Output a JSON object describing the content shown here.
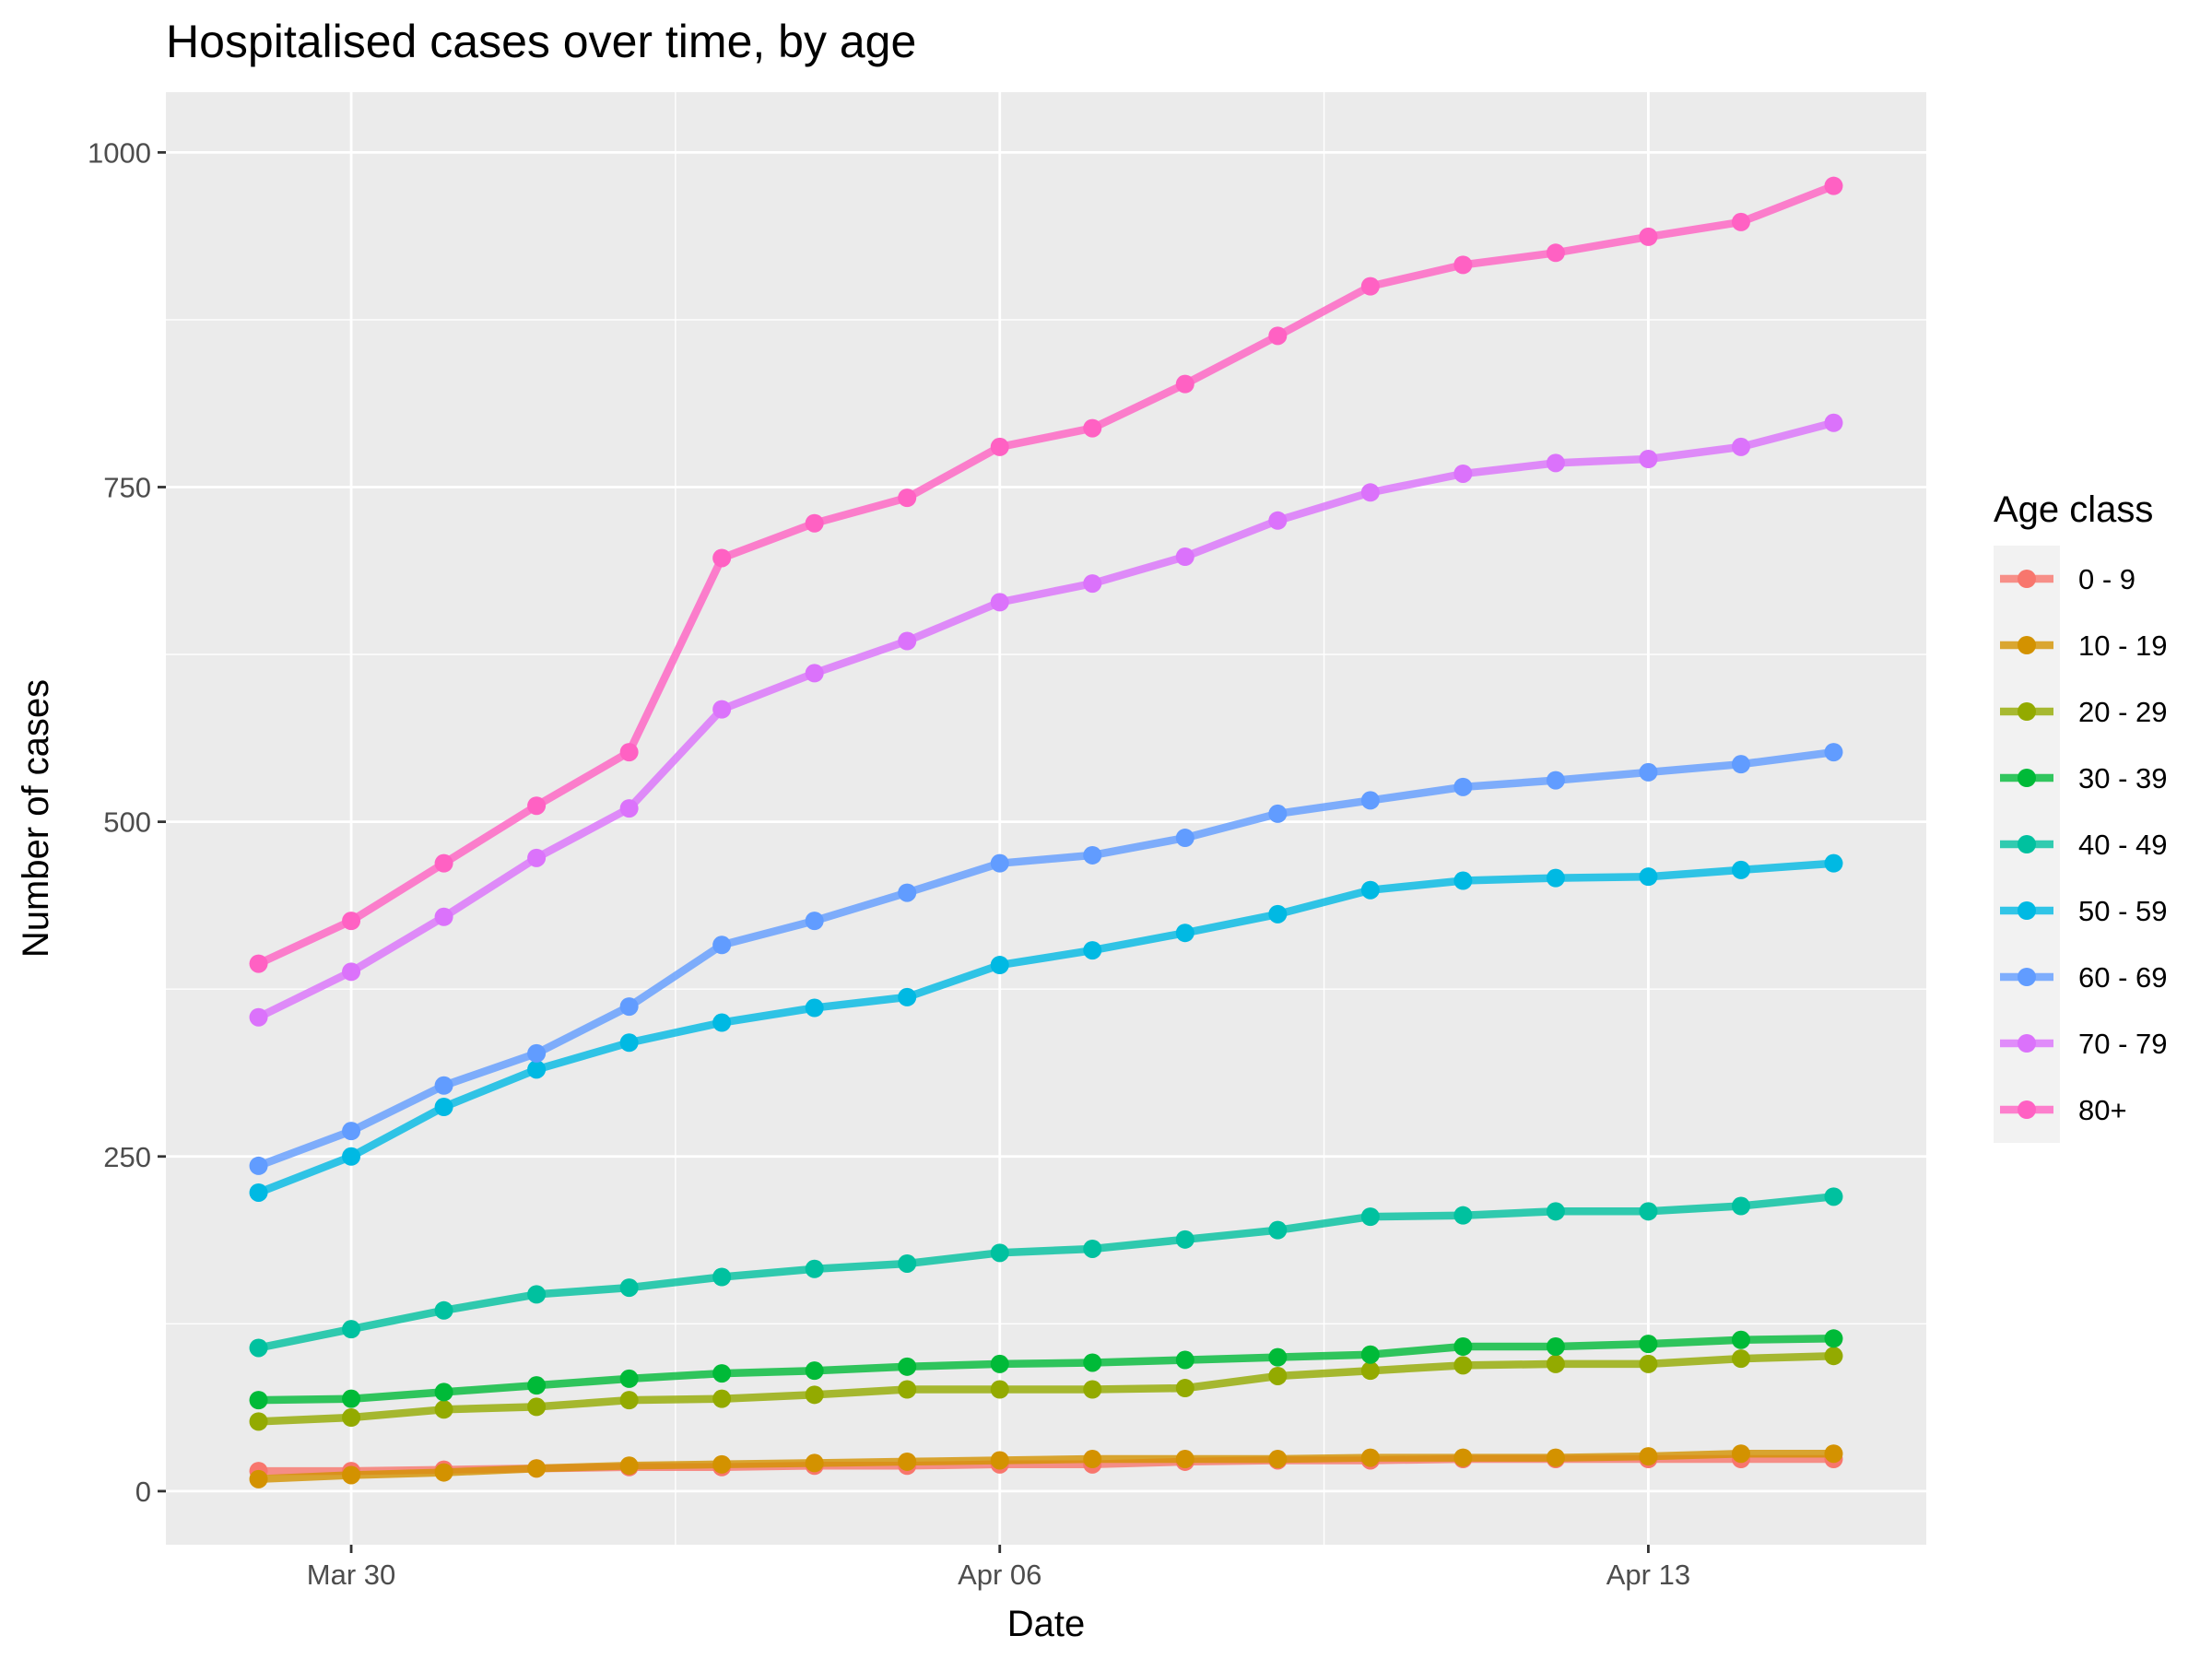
{
  "chart_data": {
    "type": "line",
    "title": "Hospitalised cases over time, by age",
    "xlabel": "Date",
    "ylabel": "Number of cases",
    "legend_title": "Age class",
    "legend_position": "right",
    "grid": true,
    "x": [
      "2020-03-29",
      "2020-03-30",
      "2020-03-31",
      "2020-04-01",
      "2020-04-02",
      "2020-04-03",
      "2020-04-04",
      "2020-04-05",
      "2020-04-06",
      "2020-04-07",
      "2020-04-08",
      "2020-04-09",
      "2020-04-10",
      "2020-04-11",
      "2020-04-12",
      "2020-04-13",
      "2020-04-14",
      "2020-04-15"
    ],
    "xlim": [
      "2020-03-28",
      "2020-04-16"
    ],
    "x_ticks": [
      {
        "date": "2020-03-30",
        "label": "Mar 30"
      },
      {
        "date": "2020-04-06",
        "label": "Apr 06"
      },
      {
        "date": "2020-04-13",
        "label": "Apr 13"
      }
    ],
    "ylim": [
      -40,
      1045
    ],
    "y_ticks": [
      0,
      250,
      500,
      750,
      1000
    ],
    "series": [
      {
        "name": "0 - 9",
        "color": "#F8766D",
        "values": [
          15,
          15,
          16,
          17,
          18,
          18,
          19,
          19,
          20,
          20,
          22,
          23,
          23,
          24,
          24,
          24,
          24,
          24
        ]
      },
      {
        "name": "10 - 19",
        "color": "#D39200",
        "values": [
          9,
          12,
          14,
          17,
          19,
          20,
          21,
          22,
          23,
          24,
          24,
          24,
          25,
          25,
          25,
          26,
          28,
          28
        ]
      },
      {
        "name": "20 - 29",
        "color": "#93AA00",
        "values": [
          52,
          55,
          61,
          63,
          68,
          69,
          72,
          76,
          76,
          76,
          77,
          86,
          90,
          94,
          95,
          95,
          99,
          101
        ]
      },
      {
        "name": "30 - 39",
        "color": "#00BA38",
        "values": [
          68,
          69,
          74,
          79,
          84,
          88,
          90,
          93,
          95,
          96,
          98,
          100,
          102,
          108,
          108,
          110,
          113,
          114
        ]
      },
      {
        "name": "40 - 49",
        "color": "#00C19F",
        "values": [
          107,
          121,
          135,
          147,
          152,
          160,
          166,
          170,
          178,
          181,
          188,
          195,
          205,
          206,
          209,
          209,
          213,
          220
        ]
      },
      {
        "name": "50 - 59",
        "color": "#00B9E3",
        "values": [
          223,
          250,
          287,
          315,
          335,
          350,
          361,
          369,
          393,
          404,
          417,
          431,
          449,
          456,
          458,
          459,
          464,
          469
        ]
      },
      {
        "name": "60 - 69",
        "color": "#619CFF",
        "values": [
          243,
          269,
          303,
          327,
          362,
          408,
          426,
          447,
          469,
          475,
          488,
          506,
          516,
          526,
          531,
          537,
          543,
          552
        ]
      },
      {
        "name": "70 - 79",
        "color": "#DB72FB",
        "values": [
          354,
          388,
          429,
          473,
          510,
          584,
          611,
          635,
          664,
          678,
          698,
          725,
          746,
          760,
          768,
          771,
          780,
          798
        ]
      },
      {
        "name": "80+",
        "color": "#FF61C3",
        "values": [
          394,
          426,
          469,
          512,
          552,
          697,
          723,
          742,
          780,
          794,
          827,
          863,
          900,
          916,
          925,
          937,
          948,
          975
        ]
      }
    ]
  }
}
